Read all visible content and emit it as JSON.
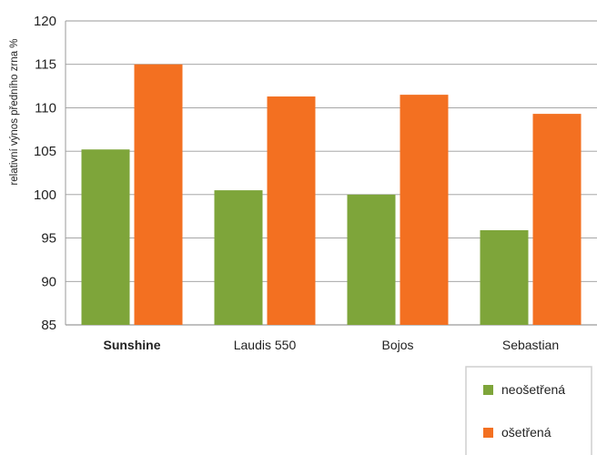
{
  "chart_data": {
    "type": "bar",
    "title": "",
    "xlabel": "",
    "ylabel": "relativní výnos předního zrna %",
    "ylim": [
      85,
      120
    ],
    "yticks": [
      85,
      90,
      95,
      100,
      105,
      110,
      115,
      120
    ],
    "grid": true,
    "legend_position": "bottom-right",
    "categories": [
      "Sunshine",
      "Laudis 550",
      "Bojos",
      "Sebastian"
    ],
    "bold_categories": [
      "Sunshine"
    ],
    "series": [
      {
        "name": "neošetřená",
        "color": "#7ea53a",
        "values": [
          105.2,
          100.5,
          100.0,
          95.9
        ]
      },
      {
        "name": "ošetřená",
        "color": "#f37021",
        "values": [
          115.0,
          111.3,
          111.5,
          109.3
        ]
      }
    ]
  }
}
